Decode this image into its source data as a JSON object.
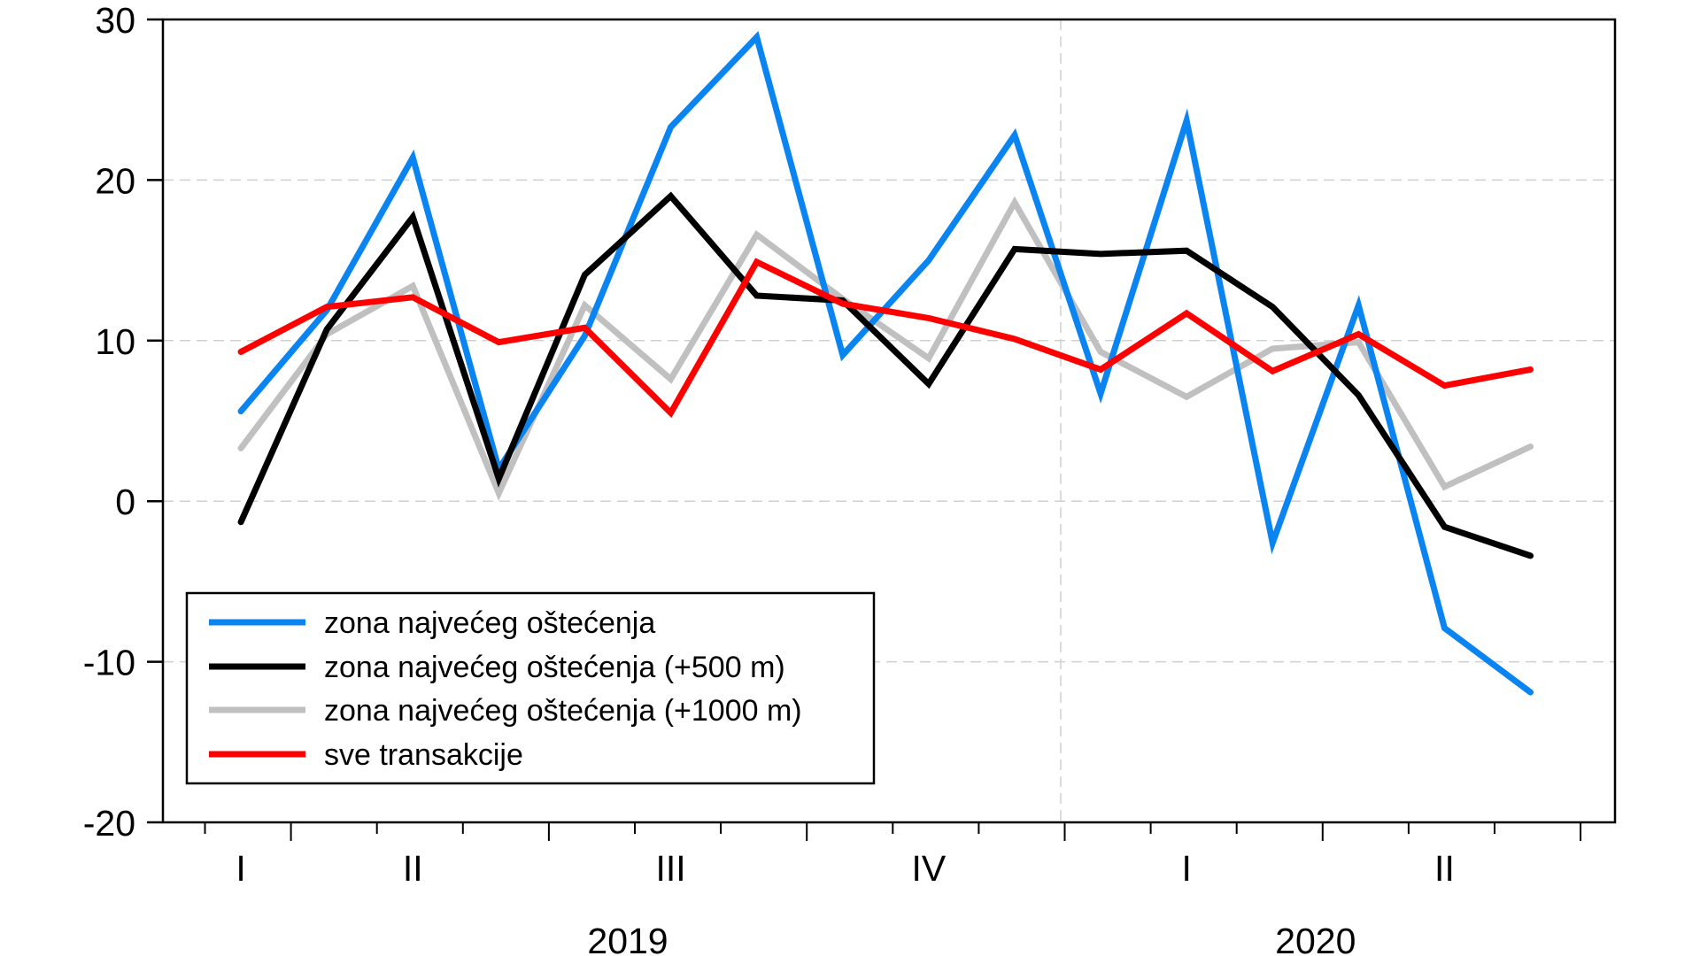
{
  "chart_data": {
    "type": "line",
    "title": "",
    "xlabel": "",
    "ylabel": "",
    "ylim": [
      -20,
      30
    ],
    "yticks": [
      "30",
      "20",
      "10",
      "0",
      "-10",
      "-20"
    ],
    "ytick_values": [
      30,
      20,
      10,
      0,
      -10,
      -20
    ],
    "grid": true,
    "x_period_count": 16,
    "quarter_labels": [
      {
        "text": "I",
        "at_period": 1.0
      },
      {
        "text": "II",
        "at_period": 3.0
      },
      {
        "text": "III",
        "at_period": 6.0
      },
      {
        "text": "IV",
        "at_period": 9.0
      },
      {
        "text": "I",
        "at_period": 12.0
      },
      {
        "text": "II",
        "at_period": 15.0
      }
    ],
    "year_labels": [
      {
        "text": "2019",
        "at_period": 5.5
      },
      {
        "text": "2020",
        "at_period": 13.5
      }
    ],
    "legend_position": "bottom-left",
    "series": [
      {
        "name": "zona najvećeg oštećenja",
        "color": "#0a84f0",
        "values": [
          5.6,
          11.9,
          21.4,
          2.0,
          10.3,
          23.3,
          28.9,
          9.1,
          15.0,
          22.8,
          6.7,
          23.7,
          -2.6,
          12.2,
          -7.9,
          -11.9
        ]
      },
      {
        "name": "zona najvećeg oštećenja (+500 m)",
        "color": "#000000",
        "values": [
          -1.3,
          10.7,
          17.7,
          1.4,
          14.1,
          19.0,
          12.8,
          12.5,
          7.3,
          15.7,
          15.4,
          15.6,
          12.1,
          6.6,
          -1.6,
          -3.4
        ]
      },
      {
        "name": "zona najvećeg oštećenja (+1000 m)",
        "color": "#c0c0c0",
        "values": [
          3.3,
          10.4,
          13.4,
          0.5,
          12.2,
          7.6,
          16.6,
          12.6,
          8.9,
          18.6,
          9.3,
          6.5,
          9.5,
          9.9,
          0.9,
          3.4
        ]
      },
      {
        "name": "sve transakcije",
        "color": "#ff0000",
        "values": [
          9.3,
          12.1,
          12.7,
          9.9,
          10.8,
          5.5,
          14.9,
          12.3,
          11.4,
          10.1,
          8.2,
          11.7,
          8.1,
          10.4,
          7.2,
          8.2
        ]
      }
    ]
  }
}
